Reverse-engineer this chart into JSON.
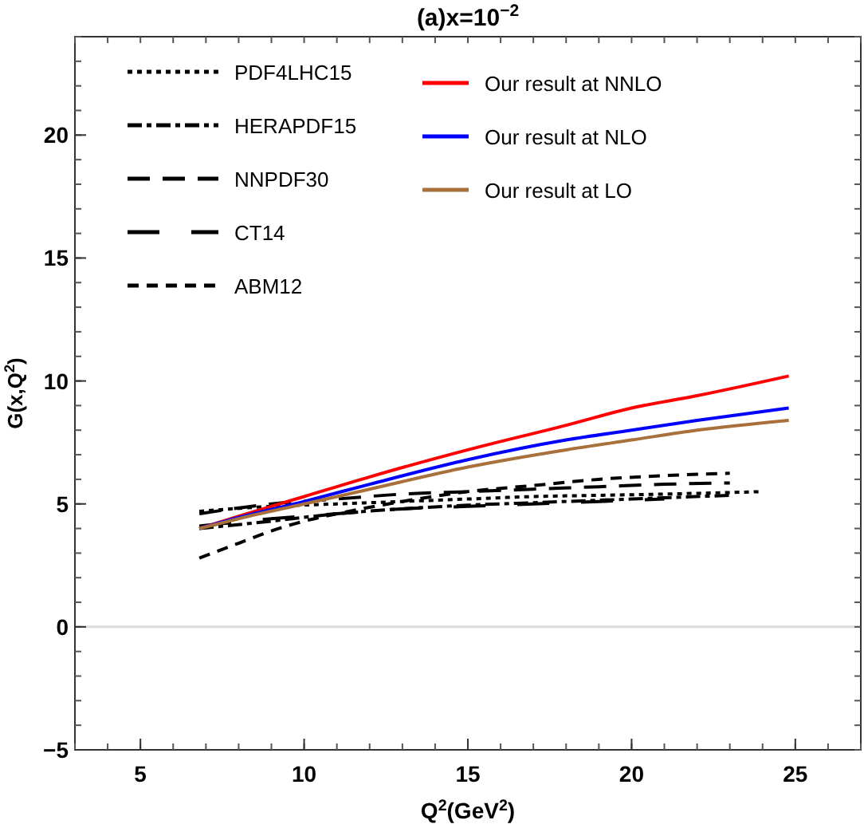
{
  "chart_data": {
    "type": "line",
    "title": "(a)x=10$^{−2}$",
    "xlabel": "Q$^{2}$(GeV$^{2}$)",
    "ylabel": "G(x,Q$^{2}$)",
    "xlim": [
      3,
      27
    ],
    "ylim": [
      -5,
      24
    ],
    "xticks": [
      5,
      10,
      15,
      20,
      25
    ],
    "yticks": [
      -5,
      0,
      5,
      10,
      15,
      20
    ],
    "grid": false,
    "legend": "top left",
    "ref_lines": [
      {
        "axis": "y",
        "value": 0,
        "color": "#dddddd"
      }
    ],
    "series": [
      {
        "name": "PDF4LHC15",
        "color": "#000000",
        "line_style": "dotted",
        "x": [
          6.8,
          9,
          11,
          13,
          15,
          17,
          19,
          21,
          24
        ],
        "values": [
          4.7,
          4.9,
          5.0,
          5.1,
          5.2,
          5.3,
          5.35,
          5.4,
          5.5
        ]
      },
      {
        "name": "HERAPDF15",
        "color": "#000000",
        "line_style": "dashdot",
        "x": [
          6.8,
          9,
          11,
          13,
          15,
          17,
          19,
          21,
          23
        ],
        "values": [
          4.0,
          4.3,
          4.6,
          4.8,
          4.95,
          5.05,
          5.15,
          5.25,
          5.35
        ]
      },
      {
        "name": "NNPDF30",
        "color": "#000000",
        "line_style": "longdash",
        "x": [
          6.8,
          9,
          11,
          13,
          15,
          17,
          19,
          21,
          23
        ],
        "values": [
          4.6,
          5.0,
          5.2,
          5.4,
          5.5,
          5.6,
          5.7,
          5.8,
          5.85
        ]
      },
      {
        "name": "CT14",
        "color": "#000000",
        "line_style": "longgap",
        "x": [
          6.8,
          9,
          11,
          13,
          15,
          17,
          19,
          21
        ],
        "values": [
          4.1,
          4.4,
          4.6,
          4.8,
          4.9,
          5.0,
          5.1,
          5.2
        ]
      },
      {
        "name": "ABM12",
        "color": "#000000",
        "line_style": "dashed",
        "x": [
          6.8,
          8,
          9,
          10,
          11,
          13,
          15,
          17,
          19,
          21,
          23
        ],
        "values": [
          2.8,
          3.4,
          3.9,
          4.3,
          4.6,
          5.1,
          5.5,
          5.75,
          6.0,
          6.15,
          6.25
        ]
      },
      {
        "name": "Our result at NNLO",
        "color": "#ff0000",
        "line_style": "solid",
        "x": [
          6.8,
          8,
          10,
          12,
          15,
          18,
          20,
          22,
          24.8
        ],
        "values": [
          4.0,
          4.5,
          5.3,
          6.1,
          7.2,
          8.2,
          8.9,
          9.4,
          10.2
        ]
      },
      {
        "name": "Our result at NLO",
        "color": "#0000ff",
        "line_style": "solid",
        "x": [
          6.8,
          8,
          10,
          12,
          15,
          18,
          20,
          22,
          24.8
        ],
        "values": [
          4.0,
          4.45,
          5.1,
          5.8,
          6.8,
          7.6,
          8.0,
          8.4,
          8.9
        ]
      },
      {
        "name": "Our result at LO",
        "color": "#a8703a",
        "line_style": "solid",
        "x": [
          6.8,
          8,
          10,
          12,
          15,
          18,
          20,
          22,
          24.8
        ],
        "values": [
          4.0,
          4.4,
          5.0,
          5.6,
          6.5,
          7.2,
          7.6,
          8.0,
          8.4
        ]
      }
    ]
  }
}
